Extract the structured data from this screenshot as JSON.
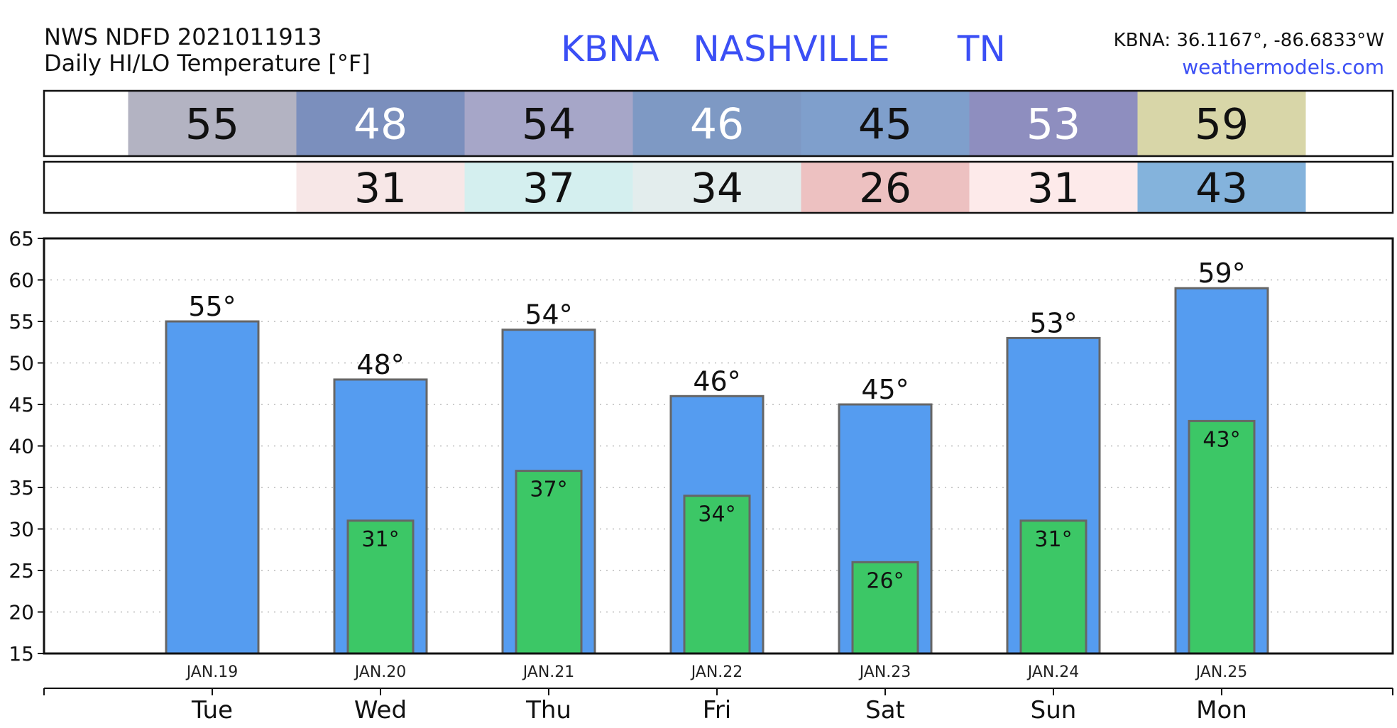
{
  "header": {
    "source_line": "NWS NDFD 2021011913",
    "product_line": "Daily HI/LO Temperature [°F]",
    "station_title": "KBNA   NASHVILLE      TN",
    "coords": "KBNA: 36.1167°, -86.6833°W",
    "site_link": "weathermodels.com"
  },
  "hi_strip": {
    "values": [
      55,
      48,
      54,
      46,
      45,
      53,
      59
    ],
    "colors": [
      "#b3b3c2",
      "#7b8fbd",
      "#a6a6c8",
      "#7e99c4",
      "#7f9fcc",
      "#8e8ebf",
      "#d8d6a8"
    ],
    "text_colors": [
      "#111111",
      "#ffffff",
      "#111111",
      "#ffffff",
      "#111111",
      "#ffffff",
      "#111111"
    ]
  },
  "lo_strip": {
    "values": [
      null,
      31,
      37,
      34,
      26,
      31,
      43
    ],
    "colors": [
      null,
      "#f7e7e7",
      "#d4efef",
      "#e3eded",
      "#edc1c1",
      "#fdeaea",
      "#84b3dc"
    ]
  },
  "chart_data": {
    "type": "bar",
    "categories": [
      "Tue",
      "Wed",
      "Thu",
      "Fri",
      "Sat",
      "Sun",
      "Mon"
    ],
    "dates": [
      "JAN.19",
      "JAN.20",
      "JAN.21",
      "JAN.22",
      "JAN.23",
      "JAN.24",
      "JAN.25"
    ],
    "series": [
      {
        "values": [
          55,
          48,
          54,
          46,
          45,
          53,
          59
        ],
        "color": "#559cf0"
      },
      {
        "values": [
          null,
          31,
          37,
          34,
          26,
          31,
          43
        ],
        "color": "#3cc766"
      }
    ],
    "value_suffix": "°",
    "ylim": [
      15,
      65
    ],
    "yticks": [
      15,
      20,
      25,
      30,
      35,
      40,
      45,
      50,
      55,
      60,
      65
    ],
    "grid": true
  }
}
